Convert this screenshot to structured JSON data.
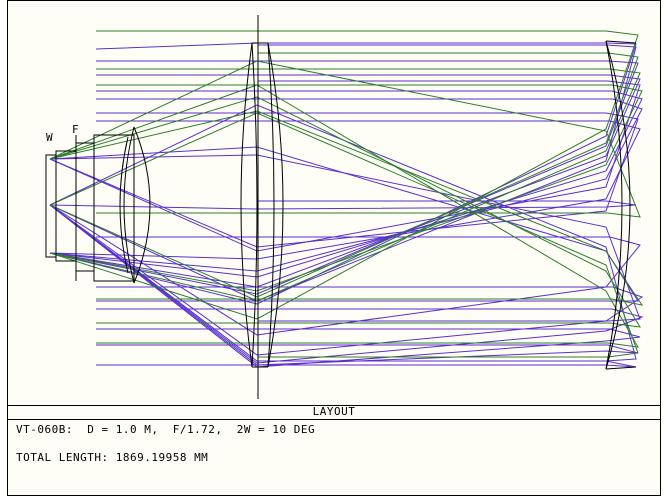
{
  "diagram": {
    "type": "optical-layout",
    "labels": {
      "w": "W",
      "f": "F"
    },
    "colors": {
      "ray_violet": "#5a2fd0",
      "ray_green": "#2c7d2c",
      "lens": "#000000",
      "background": "#fefef6"
    }
  },
  "caption": {
    "title": "LAYOUT"
  },
  "info": {
    "line1": "VT-060B:  D = 1.0 M,  F/1.72,  2W = 10 DEG",
    "line2": "TOTAL LENGTH: 1869.19958 MM"
  }
}
